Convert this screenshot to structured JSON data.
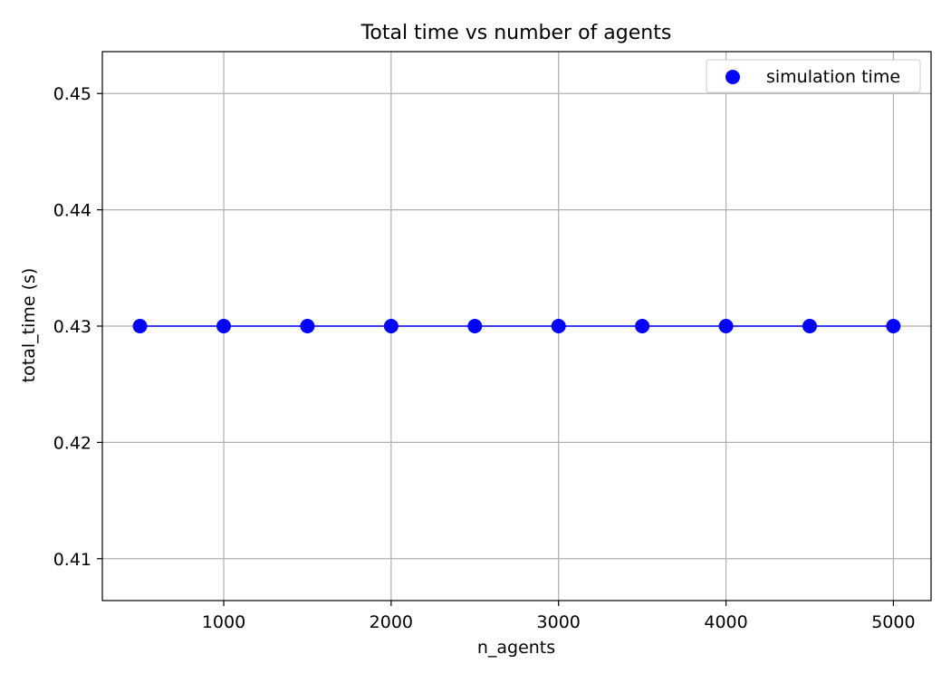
{
  "chart_data": {
    "type": "scatter",
    "title": "Total time vs number of agents",
    "xlabel": "n_agents",
    "ylabel": "total_time (s)",
    "x": [
      500,
      1000,
      1500,
      2000,
      2500,
      3000,
      3500,
      4000,
      4500,
      5000
    ],
    "series": [
      {
        "name": "simulation time",
        "values": [
          0.43,
          0.43,
          0.43,
          0.43,
          0.43,
          0.43,
          0.43,
          0.43,
          0.43,
          0.43
        ],
        "color": "#0000ff",
        "connected_by_line": true
      }
    ],
    "xlim": [
      275,
      5225
    ],
    "ylim": [
      0.4064,
      0.4536
    ],
    "xticks": [
      1000,
      2000,
      3000,
      4000,
      5000
    ],
    "xtick_labels": [
      "1000",
      "2000",
      "3000",
      "4000",
      "5000"
    ],
    "yticks": [
      0.41,
      0.42,
      0.43,
      0.44,
      0.45
    ],
    "ytick_labels": [
      "0.41",
      "0.42",
      "0.43",
      "0.44",
      "0.45"
    ],
    "grid": true,
    "legend_position": "top-right",
    "colors": {
      "series": "#0000ff",
      "grid": "#b0b0b0",
      "axes": "#000000",
      "background": "#ffffff"
    }
  }
}
